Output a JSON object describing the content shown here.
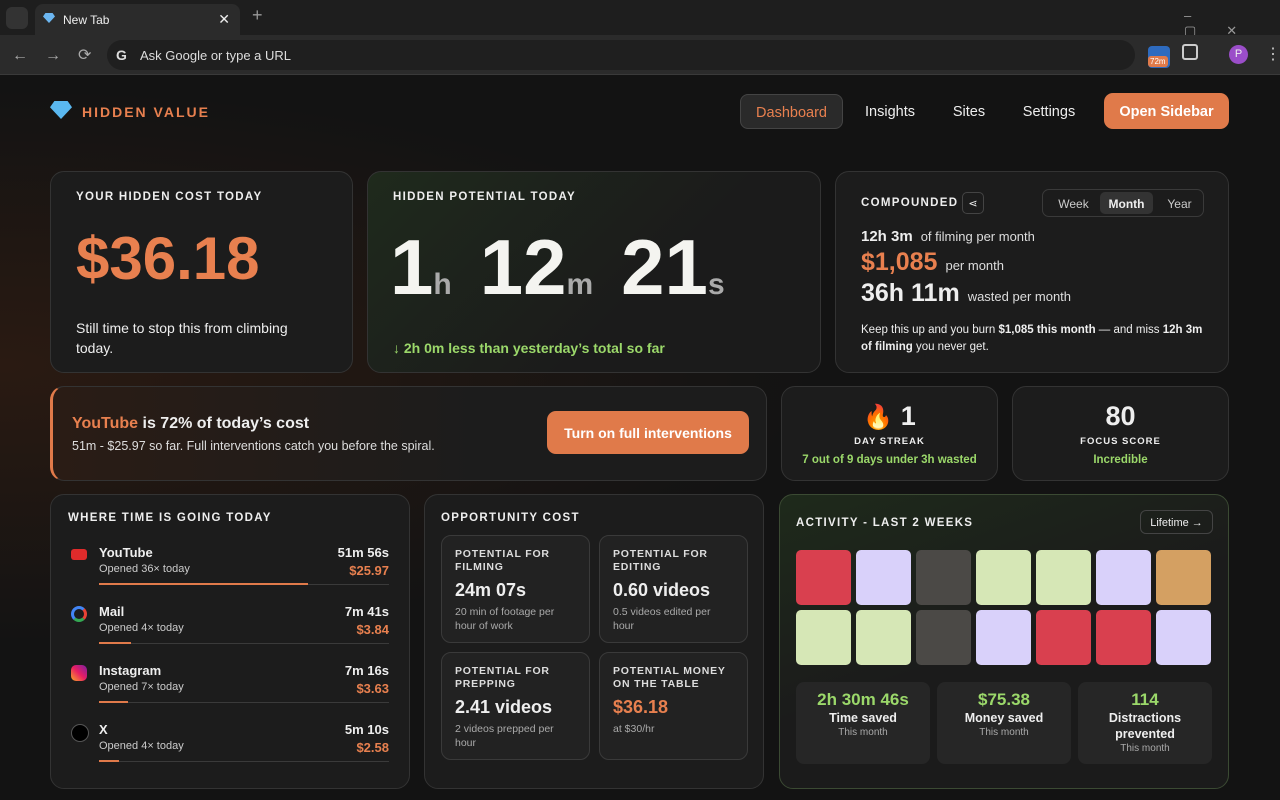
{
  "browser": {
    "tab_title": "New Tab",
    "address_placeholder": "Ask Google or type a URL",
    "extension_badge": "72m",
    "profile": "P"
  },
  "header": {
    "brand": "HIDDEN VALUE",
    "nav": [
      "Dashboard",
      "Insights",
      "Sites",
      "Settings"
    ],
    "active_nav": 0,
    "cta": "Open Sidebar"
  },
  "cost_card": {
    "label": "YOUR HIDDEN COST TODAY",
    "amount": "$36.18",
    "note": "Still time to stop this from climbing today."
  },
  "potential_card": {
    "label": "HIDDEN POTENTIAL TODAY",
    "parts": [
      {
        "value": "1",
        "unit": "h"
      },
      {
        "value": "12",
        "unit": "m"
      },
      {
        "value": "21",
        "unit": "s"
      }
    ],
    "note": "↓ 2h 0m less than yesterday’s total so far"
  },
  "compounded": {
    "label": "COMPOUNDED",
    "tabs": [
      "Week",
      "Month",
      "Year"
    ],
    "active_tab": 1,
    "lines": [
      {
        "value": "12h 3m",
        "text": "of filming per month",
        "accent": false,
        "size": "small"
      },
      {
        "value": "$1,085",
        "text": "per month",
        "accent": true,
        "size": "large"
      },
      {
        "value": "36h 11m",
        "text": "wasted per month",
        "accent": false,
        "size": "large"
      }
    ],
    "summary": [
      {
        "text": "Keep this up and you burn ",
        "bold": false
      },
      {
        "text": "$1,085 this month",
        "bold": true
      },
      {
        "text": " — and miss ",
        "bold": false
      },
      {
        "text": "12h 3m of filming",
        "bold": true
      },
      {
        "text": " you never get.",
        "bold": false
      }
    ]
  },
  "alert": {
    "site": "YouTube",
    "headline": " is 72% of today’s cost",
    "detail": "51m - $25.97 so far. Full interventions catch you before the spiral.",
    "button": "Turn on full interventions"
  },
  "streak": {
    "value": "1",
    "label": "DAY STREAK",
    "note": "7 out of 9 days under 3h wasted"
  },
  "focus": {
    "value": "80",
    "label": "FOCUS SCORE",
    "note": "Incredible"
  },
  "where_time": {
    "title": "WHERE TIME IS GOING TODAY",
    "items": [
      {
        "name": "YouTube",
        "opened": "Opened 36× today",
        "time": "51m 56s",
        "cost": "$25.97",
        "share": 72,
        "icon": "yt"
      },
      {
        "name": "Mail",
        "opened": "Opened 4× today",
        "time": "7m 41s",
        "cost": "$3.84",
        "share": 11,
        "icon": "g"
      },
      {
        "name": "Instagram",
        "opened": "Opened 7× today",
        "time": "7m 16s",
        "cost": "$3.63",
        "share": 10,
        "icon": "ig"
      },
      {
        "name": "X",
        "opened": "Opened 4× today",
        "time": "5m 10s",
        "cost": "$2.58",
        "share": 7,
        "icon": "x"
      }
    ]
  },
  "opportunity": {
    "title": "OPPORTUNITY COST",
    "cells": [
      {
        "label": "POTENTIAL FOR FILMING",
        "value": "24m 07s",
        "note": "20 min of footage per hour of work",
        "accent": false
      },
      {
        "label": "POTENTIAL FOR EDITING",
        "value": "0.60 videos",
        "note": "0.5 videos edited per hour",
        "accent": false
      },
      {
        "label": "POTENTIAL FOR PREPPING",
        "value": "2.41 videos",
        "note": "2 videos prepped per hour",
        "accent": false
      },
      {
        "label": "POTENTIAL MONEY ON THE TABLE",
        "value": "$36.18",
        "note": "at $30/hr",
        "accent": true
      }
    ]
  },
  "activity": {
    "title": "ACTIVITY - LAST 2 WEEKS",
    "button": "Lifetime →",
    "cells": [
      "#d9404f",
      "#d9d1fa",
      "#4b4946",
      "#d6e7b6",
      "#d6e7b6",
      "#d9d1fa",
      "#d4a062",
      "#d6e7b6",
      "#d6e7b6",
      "#4b4946",
      "#d9d1fa",
      "#d9404f",
      "#d9404f",
      "#d9d1fa"
    ],
    "stats": [
      {
        "value": "2h 30m 46s",
        "label": "Time saved",
        "note": "This month"
      },
      {
        "value": "$75.38",
        "label": "Money saved",
        "note": "This month"
      },
      {
        "value": "114",
        "label": "Distractions prevented",
        "note": "This month"
      }
    ]
  }
}
